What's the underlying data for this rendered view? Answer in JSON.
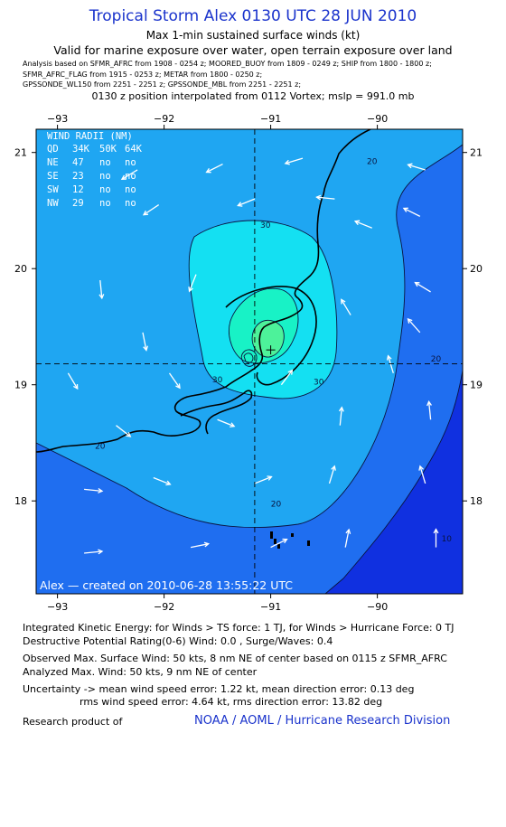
{
  "header": {
    "title": "Tropical Storm Alex 0130 UTC 28 JUN 2010",
    "subtitle": "Max 1-min sustained surface winds (kt)",
    "validity": "Valid for marine exposure over water, open terrain exposure over land",
    "analysis_line1": "Analysis based on   SFMR_AFRC from 1908 - 0254 z;   MOORED_BUOY from 1809 - 0249 z;   SHIP from 1800 - 1800 z;",
    "analysis_line2": "SFMR_AFRC_FLAG from 1915 - 0253 z;   METAR from 1800 - 0250 z;",
    "analysis_line3": "GPSSONDE_WL150 from 2251 - 2251 z;   GPSSONDE_MBL from 2251 - 2251 z;",
    "position_note": "0130 z position interpolated from 0112 Vortex; mslp = 991.0 mb"
  },
  "wind_radii": {
    "title": "WIND RADII (NM)",
    "header": [
      "QD",
      "34K",
      "50K",
      "64K"
    ],
    "rows": [
      [
        "NE",
        "47",
        "no",
        "no"
      ],
      [
        "SE",
        "23",
        "no",
        "no"
      ],
      [
        "SW",
        "12",
        "no",
        "no"
      ],
      [
        "NW",
        "29",
        "no",
        "no"
      ]
    ]
  },
  "chart_data": {
    "type": "contour",
    "xlabel": "",
    "ylabel": "",
    "xlim": [
      -93.2,
      -89.2
    ],
    "ylim": [
      17.2,
      21.2
    ],
    "x_ticks": [
      -93,
      -92,
      -91,
      -90
    ],
    "x_tick_labels": [
      "−93",
      "−92",
      "−91",
      "−90"
    ],
    "y_ticks": [
      18,
      19,
      20,
      21
    ],
    "y_tick_labels": [
      "18",
      "19",
      "20",
      "21"
    ],
    "storm_center": {
      "lon": -91.0,
      "lat": 19.3
    },
    "crosshair": {
      "lon": -91.15,
      "lat": 19.18
    },
    "contour_levels_kt": [
      10,
      20,
      30,
      40,
      50
    ],
    "contour_labels": [
      {
        "text": "20",
        "lon": -90.05,
        "lat": 20.9
      },
      {
        "text": "30",
        "lon": -91.05,
        "lat": 20.35
      },
      {
        "text": "30",
        "lon": -91.5,
        "lat": 19.02
      },
      {
        "text": "30",
        "lon": -90.55,
        "lat": 19.0
      },
      {
        "text": "20",
        "lon": -89.45,
        "lat": 19.2
      },
      {
        "text": "20",
        "lon": -92.6,
        "lat": 18.45
      },
      {
        "text": "20",
        "lon": -90.95,
        "lat": 17.95
      },
      {
        "text": "10",
        "lon": -89.35,
        "lat": 17.65
      }
    ],
    "wind_vectors": [
      {
        "lon": -92.25,
        "lat": 20.85,
        "u": -1,
        "v": -0.6
      },
      {
        "lon": -91.45,
        "lat": 20.9,
        "u": -1,
        "v": -0.5
      },
      {
        "lon": -90.7,
        "lat": 20.95,
        "u": -1,
        "v": -0.3
      },
      {
        "lon": -89.55,
        "lat": 20.85,
        "u": -1,
        "v": 0.3
      },
      {
        "lon": -92.05,
        "lat": 20.55,
        "u": -0.9,
        "v": -0.6
      },
      {
        "lon": -91.15,
        "lat": 20.6,
        "u": -1,
        "v": -0.4
      },
      {
        "lon": -90.4,
        "lat": 20.6,
        "u": -1,
        "v": 0.1
      },
      {
        "lon": -90.05,
        "lat": 20.35,
        "u": -1,
        "v": 0.4
      },
      {
        "lon": -89.6,
        "lat": 20.45,
        "u": -1,
        "v": 0.5
      },
      {
        "lon": -92.6,
        "lat": 19.9,
        "u": 0.1,
        "v": -1
      },
      {
        "lon": -91.7,
        "lat": 19.95,
        "u": -0.4,
        "v": -1
      },
      {
        "lon": -89.5,
        "lat": 19.8,
        "u": -1,
        "v": 0.6
      },
      {
        "lon": -92.2,
        "lat": 19.45,
        "u": 0.2,
        "v": -1
      },
      {
        "lon": -90.25,
        "lat": 19.6,
        "u": -0.6,
        "v": 1
      },
      {
        "lon": -89.6,
        "lat": 19.45,
        "u": -0.8,
        "v": 0.9
      },
      {
        "lon": -92.9,
        "lat": 19.1,
        "u": 0.6,
        "v": -1
      },
      {
        "lon": -91.95,
        "lat": 19.1,
        "u": 0.7,
        "v": -1
      },
      {
        "lon": -90.9,
        "lat": 19.0,
        "u": 0.6,
        "v": 0.8
      },
      {
        "lon": -89.85,
        "lat": 19.1,
        "u": -0.3,
        "v": 1
      },
      {
        "lon": -92.45,
        "lat": 18.65,
        "u": 0.9,
        "v": -0.7
      },
      {
        "lon": -91.5,
        "lat": 18.7,
        "u": 1,
        "v": -0.4
      },
      {
        "lon": -90.35,
        "lat": 18.65,
        "u": 0.1,
        "v": 1
      },
      {
        "lon": -89.5,
        "lat": 18.7,
        "u": -0.1,
        "v": 1
      },
      {
        "lon": -92.75,
        "lat": 18.1,
        "u": 1,
        "v": -0.1
      },
      {
        "lon": -92.1,
        "lat": 18.2,
        "u": 1,
        "v": -0.4
      },
      {
        "lon": -91.15,
        "lat": 18.15,
        "u": 1,
        "v": 0.4
      },
      {
        "lon": -90.45,
        "lat": 18.15,
        "u": 0.3,
        "v": 1
      },
      {
        "lon": -89.55,
        "lat": 18.15,
        "u": -0.3,
        "v": 1
      },
      {
        "lon": -92.75,
        "lat": 17.55,
        "u": 1,
        "v": 0.1
      },
      {
        "lon": -91.75,
        "lat": 17.6,
        "u": 1,
        "v": 0.2
      },
      {
        "lon": -91.0,
        "lat": 17.6,
        "u": 1,
        "v": 0.5
      },
      {
        "lon": -90.3,
        "lat": 17.6,
        "u": 0.2,
        "v": 1
      },
      {
        "lon": -89.45,
        "lat": 17.6,
        "u": 0,
        "v": 1
      }
    ],
    "credit_text": "Alex — created on 2010-06-28 13:55:22 UTC"
  },
  "colors": {
    "title": "#1a33cc",
    "band_lt10": "#1030e0",
    "band_10_20": "#1f6ef0",
    "band_20_30": "#1fa6f2",
    "band_30_40": "#14e0f2",
    "band_40_50": "#18f2c6",
    "band_50_plus": "#4df29a",
    "credit": "#1a33cc"
  },
  "footer": {
    "ike": "Integrated Kinetic Energy:  for Winds > TS force: 1 TJ,  for Winds > Hurricane Force: 0 TJ",
    "dpr": "Destructive Potential Rating(0-6)   Wind: 0.0 , Surge/Waves: 0.4",
    "obs_max": "Observed Max. Surface Wind: 50 kts, 8 nm NE of center based on 0115 z SFMR_AFRC",
    "analyzed_max": "Analyzed Max. Wind: 50 kts, 9 nm NE of center",
    "uncertainty1": "Uncertainty -> mean wind speed error: 1.22 kt,   mean direction error: 0.13 deg",
    "uncertainty2": "rms wind speed error: 4.64 kt,   rms direction error: 13.82 deg",
    "research_label": "Research product of",
    "research_org": "NOAA / AOML / Hurricane Research Division"
  }
}
